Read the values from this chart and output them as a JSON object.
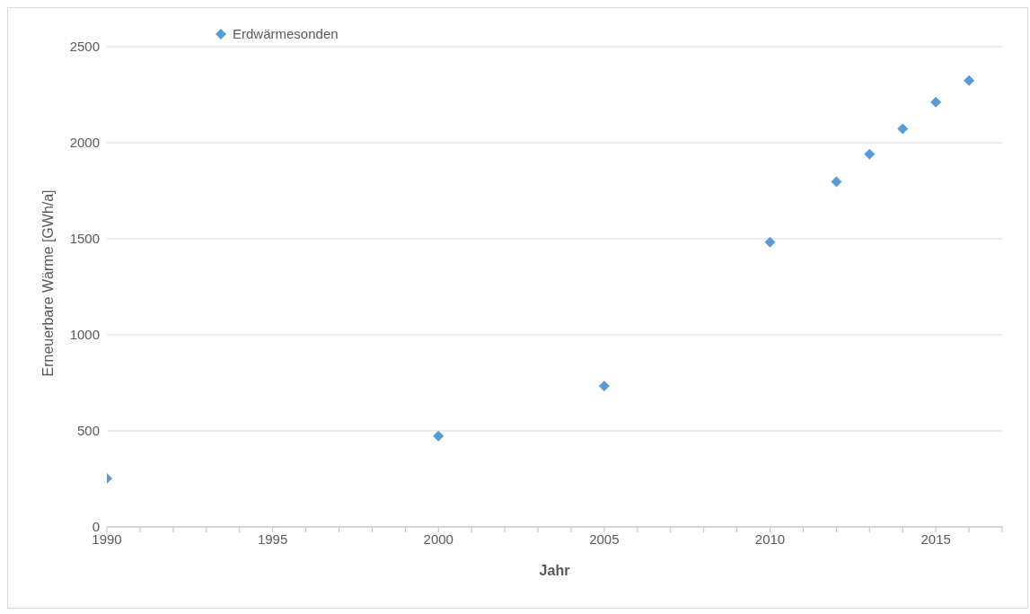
{
  "chart_data": {
    "type": "scatter",
    "xlabel": "Jahr",
    "ylabel": "Erneuerbare Wärme [GWh/a]",
    "x": [
      1990,
      2000,
      2005,
      2010,
      2012,
      2013,
      2014,
      2015,
      2016
    ],
    "series": [
      {
        "name": "Erdwärmesonden",
        "color": "#5b9bd5",
        "values": [
          252,
          473,
          734,
          1482,
          1797,
          1941,
          2072,
          2212,
          2324
        ]
      }
    ],
    "xlim": [
      1990,
      2017
    ],
    "xticks": [
      1990,
      {
        "value": 1991,
        "label": null
      },
      {
        "value": 1992,
        "label": null
      },
      {
        "value": 1993,
        "label": null
      },
      {
        "value": 1994,
        "label": null
      },
      1995,
      {
        "value": 1996,
        "label": null
      },
      {
        "value": 1997,
        "label": null
      },
      {
        "value": 1998,
        "label": null
      },
      {
        "value": 1999,
        "label": null
      },
      2000,
      {
        "value": 2001,
        "label": null
      },
      {
        "value": 2002,
        "label": null
      },
      {
        "value": 2003,
        "label": null
      },
      {
        "value": 2004,
        "label": null
      },
      2005,
      {
        "value": 2006,
        "label": null
      },
      {
        "value": 2007,
        "label": null
      },
      {
        "value": 2008,
        "label": null
      },
      {
        "value": 2009,
        "label": null
      },
      2010,
      {
        "value": 2011,
        "label": null
      },
      {
        "value": 2012,
        "label": null
      },
      {
        "value": 2013,
        "label": null
      },
      {
        "value": 2014,
        "label": null
      },
      2015,
      {
        "value": 2016,
        "label": null
      },
      {
        "value": 2017,
        "label": null
      }
    ],
    "ylim": [
      0,
      2500
    ],
    "yticks": [
      0,
      500,
      1000,
      1500,
      2000,
      2500
    ],
    "grid": "y",
    "legend": "top left",
    "marker": "diamond"
  }
}
